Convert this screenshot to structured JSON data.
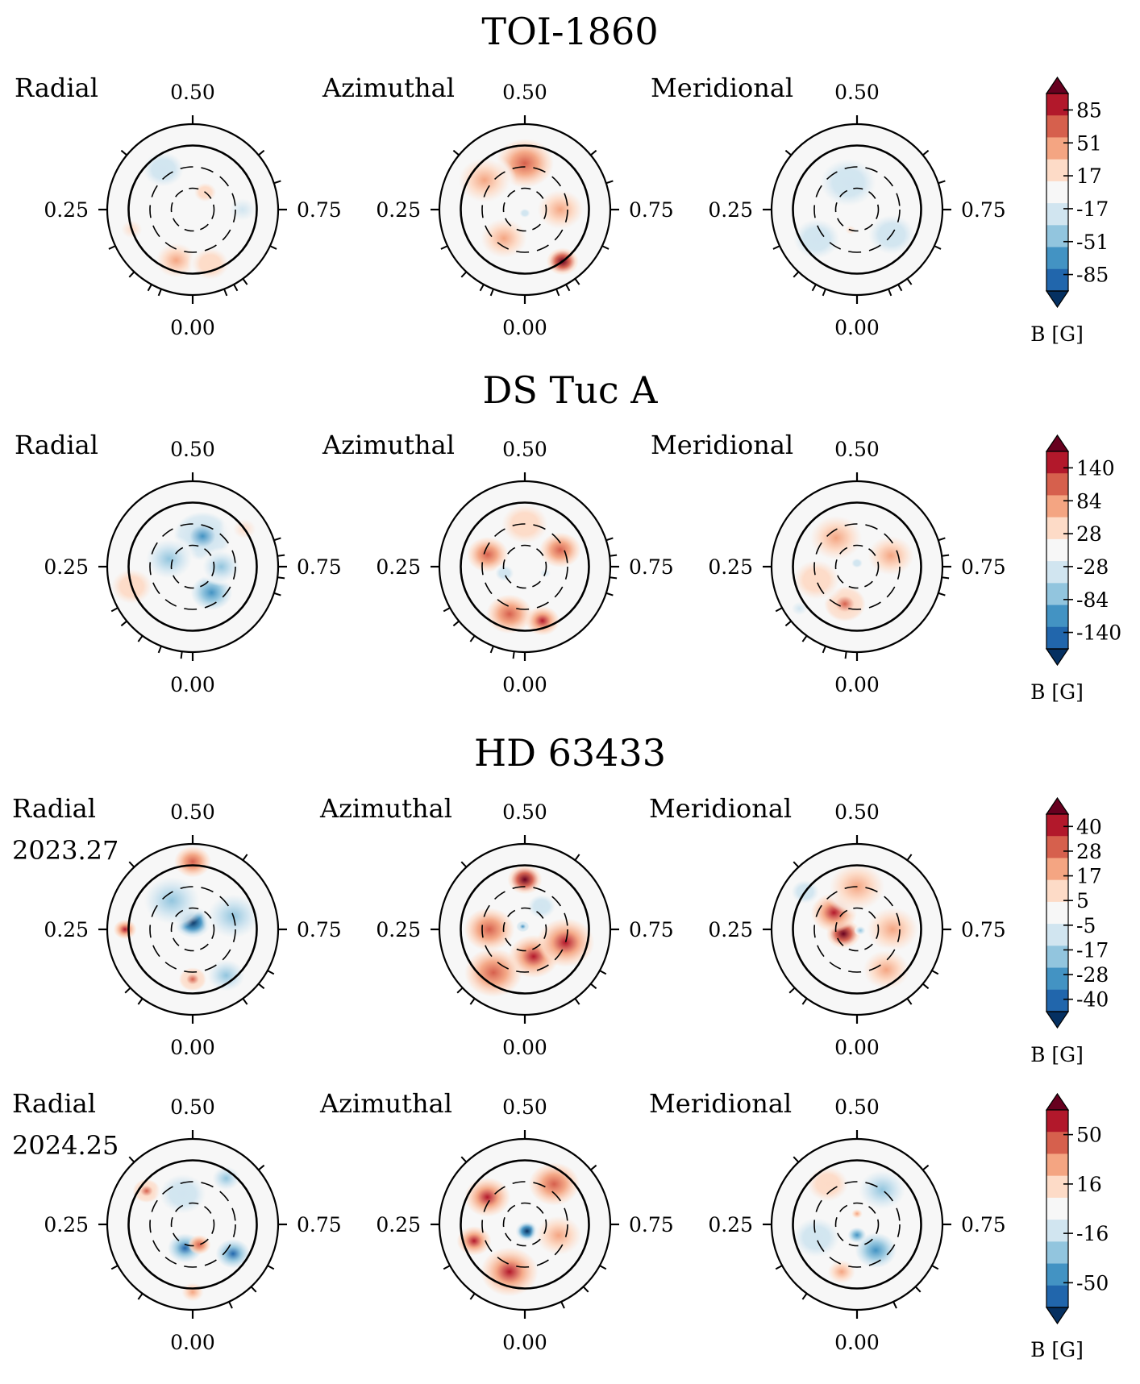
{
  "figure": {
    "colormap": [
      "#053061",
      "#2166ac",
      "#4393c3",
      "#92c5de",
      "#d1e5f0",
      "#f7f7f7",
      "#fddbc7",
      "#f4a582",
      "#d6604d",
      "#b2182b",
      "#67001f"
    ],
    "colorbar_label": "B [G]",
    "sections": [
      {
        "title": "TOI-1860"
      },
      {
        "title": "DS Tuc A"
      },
      {
        "title": "HD 63433"
      }
    ]
  },
  "chart_data": [
    {
      "type": "polar-contour",
      "star": "TOI-1860",
      "epoch": "",
      "components": [
        "Radial",
        "Azimuthal",
        "Meridional"
      ],
      "phase_labels": [
        "0.50",
        "0.25",
        "0.75",
        "0.00"
      ],
      "colorbar": {
        "ticks": [
          "85",
          "51",
          "17",
          "-17",
          "-51",
          "-85"
        ],
        "range": [
          -102,
          102
        ],
        "label": "B [G]"
      },
      "observed_phases": [
        0.06,
        0.08,
        0.12,
        0.18,
        0.36,
        0.64,
        0.7,
        0.82,
        0.9,
        0.94,
        0.92
      ],
      "maps": {
        "Radial": [
          {
            "phase": 0.4,
            "lat": 20,
            "value": -30,
            "size": 0.22
          },
          {
            "phase": 0.05,
            "lat": 15,
            "value": 40,
            "size": 0.22
          },
          {
            "phase": 0.95,
            "lat": 10,
            "value": 25,
            "size": 0.2
          },
          {
            "phase": 0.6,
            "lat": 60,
            "value": 25,
            "size": 0.12
          },
          {
            "phase": 0.2,
            "lat": 0,
            "value": 15,
            "size": 0.2
          },
          {
            "phase": 0.75,
            "lat": 20,
            "value": -15,
            "size": 0.25
          }
        ],
        "Azimuthal": [
          {
            "phase": 0.5,
            "lat": 25,
            "value": 60,
            "size": 0.25
          },
          {
            "phase": 0.35,
            "lat": 20,
            "value": 45,
            "size": 0.28
          },
          {
            "phase": 0.9,
            "lat": 0,
            "value": 95,
            "size": 0.14
          },
          {
            "phase": 0.1,
            "lat": 40,
            "value": 50,
            "size": 0.25
          },
          {
            "phase": 0.75,
            "lat": 40,
            "value": 35,
            "size": 0.25
          },
          {
            "phase": 0.0,
            "lat": 85,
            "value": -25,
            "size": 0.05
          }
        ],
        "Meridional": [
          {
            "phase": 0.45,
            "lat": 50,
            "value": -25,
            "size": 0.3
          },
          {
            "phase": 0.15,
            "lat": 20,
            "value": -20,
            "size": 0.25
          },
          {
            "phase": 0.85,
            "lat": 30,
            "value": -20,
            "size": 0.25
          },
          {
            "phase": 0.05,
            "lat": 60,
            "value": 15,
            "size": 0.1
          }
        ]
      }
    },
    {
      "type": "polar-contour",
      "star": "DS Tuc A",
      "epoch": "",
      "components": [
        "Radial",
        "Azimuthal",
        "Meridional"
      ],
      "phase_labels": [
        "0.50",
        "0.25",
        "0.75",
        "0.00"
      ],
      "colorbar": {
        "ticks": [
          "140",
          "84",
          "28",
          "-28",
          "-84",
          "-140"
        ],
        "range": [
          -168,
          168
        ],
        "label": "B [G]"
      },
      "observed_phases": [
        0.02,
        0.06,
        0.1,
        0.14,
        0.17,
        0.7,
        0.73,
        0.77,
        0.8
      ],
      "maps": {
        "Radial": [
          {
            "phase": 0.55,
            "lat": 45,
            "value": -90,
            "size": 0.25
          },
          {
            "phase": 0.3,
            "lat": 55,
            "value": -80,
            "size": 0.25
          },
          {
            "phase": 0.9,
            "lat": 45,
            "value": -100,
            "size": 0.18
          },
          {
            "phase": 0.75,
            "lat": 50,
            "value": -70,
            "size": 0.2
          },
          {
            "phase": 0.2,
            "lat": 0,
            "value": 40,
            "size": 0.22
          },
          {
            "phase": 0.65,
            "lat": 0,
            "value": 30,
            "size": 0.22
          }
        ],
        "Azimuthal": [
          {
            "phase": 0.95,
            "lat": 10,
            "value": 150,
            "size": 0.15
          },
          {
            "phase": 0.05,
            "lat": 20,
            "value": 100,
            "size": 0.2
          },
          {
            "phase": 0.3,
            "lat": 35,
            "value": 100,
            "size": 0.18
          },
          {
            "phase": 0.68,
            "lat": 35,
            "value": 100,
            "size": 0.18
          },
          {
            "phase": 0.5,
            "lat": 30,
            "value": 50,
            "size": 0.25
          },
          {
            "phase": 0.2,
            "lat": 60,
            "value": -40,
            "size": 0.1
          },
          {
            "phase": 0.8,
            "lat": 60,
            "value": -30,
            "size": 0.1
          }
        ],
        "Meridional": [
          {
            "phase": 0.4,
            "lat": 40,
            "value": 60,
            "size": 0.28
          },
          {
            "phase": 0.7,
            "lat": 40,
            "value": 55,
            "size": 0.25
          },
          {
            "phase": 0.05,
            "lat": 35,
            "value": 90,
            "size": 0.18
          },
          {
            "phase": 0.2,
            "lat": 30,
            "value": 40,
            "size": 0.25
          },
          {
            "phase": 0.15,
            "lat": -10,
            "value": -30,
            "size": 0.15
          },
          {
            "phase": 0.5,
            "lat": 85,
            "value": -40,
            "size": 0.06
          }
        ]
      }
    },
    {
      "type": "polar-contour",
      "star": "HD 63433",
      "epoch": "2023.27",
      "components": [
        "Radial",
        "Azimuthal",
        "Meridional"
      ],
      "phase_labels": [
        "0.50",
        "0.25",
        "0.75",
        "0.00"
      ],
      "colorbar": {
        "ticks": [
          "40",
          "28",
          "17",
          "5",
          "-5",
          "-17",
          "-28",
          "-40"
        ],
        "range": [
          -48,
          48
        ],
        "label": "B [G]"
      },
      "observed_phases": [
        0.1,
        0.13,
        0.38,
        0.6,
        0.83,
        0.86,
        0.9
      ],
      "maps": {
        "Radial": [
          {
            "phase": 0.5,
            "lat": 80,
            "value": -45,
            "size": 0.16
          },
          {
            "phase": 0.4,
            "lat": 40,
            "value": -20,
            "size": 0.3
          },
          {
            "phase": 0.7,
            "lat": 30,
            "value": -15,
            "size": 0.28
          },
          {
            "phase": 0.5,
            "lat": -5,
            "value": 30,
            "size": 0.16
          },
          {
            "phase": 0.25,
            "lat": -5,
            "value": 40,
            "size": 0.1
          },
          {
            "phase": 0.0,
            "lat": 20,
            "value": 25,
            "size": 0.12
          },
          {
            "phase": 0.9,
            "lat": 10,
            "value": -15,
            "size": 0.2
          }
        ],
        "Azimuthal": [
          {
            "phase": 0.5,
            "lat": 20,
            "value": 45,
            "size": 0.15
          },
          {
            "phase": 0.95,
            "lat": 50,
            "value": 40,
            "size": 0.22
          },
          {
            "phase": 0.25,
            "lat": 40,
            "value": 30,
            "size": 0.22
          },
          {
            "phase": 0.1,
            "lat": 15,
            "value": 30,
            "size": 0.25
          },
          {
            "phase": 0.8,
            "lat": 30,
            "value": 35,
            "size": 0.25
          },
          {
            "phase": 0.6,
            "lat": 50,
            "value": -10,
            "size": 0.15
          },
          {
            "phase": 0.4,
            "lat": 85,
            "value": -25,
            "size": 0.05
          }
        ],
        "Meridional": [
          {
            "phase": 0.2,
            "lat": 70,
            "value": 45,
            "size": 0.15
          },
          {
            "phase": 0.35,
            "lat": 50,
            "value": 35,
            "size": 0.2
          },
          {
            "phase": 0.5,
            "lat": 30,
            "value": 20,
            "size": 0.3
          },
          {
            "phase": 0.75,
            "lat": 40,
            "value": 15,
            "size": 0.28
          },
          {
            "phase": 0.9,
            "lat": 20,
            "value": 15,
            "size": 0.25
          },
          {
            "phase": 0.35,
            "lat": 0,
            "value": -12,
            "size": 0.15
          },
          {
            "phase": 0.8,
            "lat": 85,
            "value": -20,
            "size": 0.05
          }
        ]
      }
    },
    {
      "type": "polar-contour",
      "star": "HD 63433",
      "epoch": "2024.25",
      "components": [
        "Radial",
        "Azimuthal",
        "Meridional"
      ],
      "phase_labels": [
        "0.50",
        "0.25",
        "0.75",
        "0.00"
      ],
      "colorbar": {
        "ticks": [
          "50",
          "16",
          "-16",
          "-50"
        ],
        "range": [
          -67,
          67
        ],
        "label": "B [G]"
      },
      "observed_phases": [
        0.1,
        0.17,
        0.38,
        0.64,
        0.83,
        0.88,
        0.93
      ],
      "maps": {
        "Radial": [
          {
            "phase": 0.05,
            "lat": 55,
            "value": -55,
            "size": 0.15
          },
          {
            "phase": 0.85,
            "lat": 20,
            "value": -55,
            "size": 0.15
          },
          {
            "phase": 0.35,
            "lat": 10,
            "value": 35,
            "size": 0.12
          },
          {
            "phase": 0.95,
            "lat": 60,
            "value": 45,
            "size": 0.1
          },
          {
            "phase": 0.6,
            "lat": 10,
            "value": -30,
            "size": 0.15
          },
          {
            "phase": 0.0,
            "lat": -5,
            "value": 25,
            "size": 0.12
          },
          {
            "phase": 0.45,
            "lat": 45,
            "value": -15,
            "size": 0.25
          }
        ],
        "Azimuthal": [
          {
            "phase": 0.35,
            "lat": 25,
            "value": 60,
            "size": 0.2
          },
          {
            "phase": 0.6,
            "lat": 20,
            "value": 45,
            "size": 0.22
          },
          {
            "phase": 0.05,
            "lat": 20,
            "value": 55,
            "size": 0.25
          },
          {
            "phase": 0.2,
            "lat": 15,
            "value": 50,
            "size": 0.15
          },
          {
            "phase": 0.95,
            "lat": 80,
            "value": -65,
            "size": 0.1
          },
          {
            "phase": 0.8,
            "lat": 40,
            "value": 30,
            "size": 0.25
          }
        ],
        "Meridional": [
          {
            "phase": 0.9,
            "lat": 45,
            "value": -40,
            "size": 0.18
          },
          {
            "phase": 0.6,
            "lat": 30,
            "value": -25,
            "size": 0.25
          },
          {
            "phase": 0.2,
            "lat": 30,
            "value": -20,
            "size": 0.25
          },
          {
            "phase": 0.05,
            "lat": 20,
            "value": 25,
            "size": 0.15
          },
          {
            "phase": 0.4,
            "lat": 20,
            "value": 15,
            "size": 0.22
          },
          {
            "phase": 0.5,
            "lat": 75,
            "value": 30,
            "size": 0.06
          },
          {
            "phase": 0.0,
            "lat": 75,
            "value": -40,
            "size": 0.08
          }
        ]
      }
    }
  ]
}
